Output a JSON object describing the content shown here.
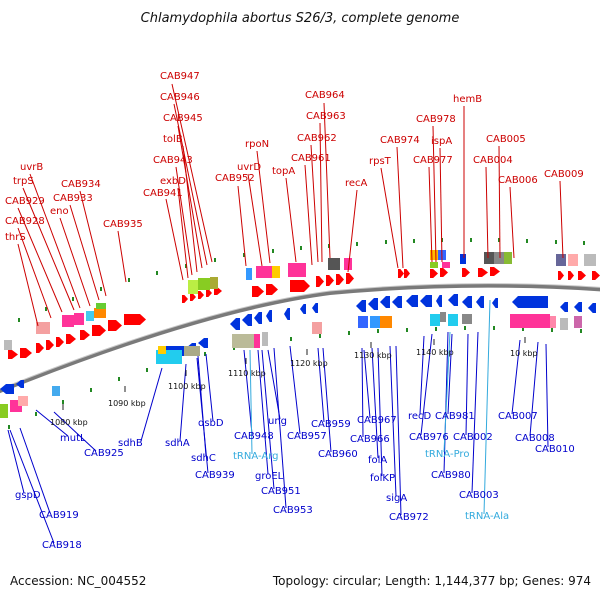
{
  "title": "Chlamydophila abortus S26/3, complete genome",
  "footer": {
    "accession": "Accession: NC_004552",
    "summary": "Topology: circular; Length: 1,144,377 bp; Genes: 974"
  },
  "colors": {
    "forward_label": "#cc0000",
    "reverse_label": "#0000cc",
    "rna_label": "#33aadd",
    "forward_gene": "#ff0000",
    "reverse_gene": "#0033dd",
    "backbone": "#808080",
    "tick": "#228822"
  },
  "ticks": [
    {
      "label": "1080 kbp"
    },
    {
      "label": "1090 kbp"
    },
    {
      "label": "1100 kbp"
    },
    {
      "label": "1110 kbp"
    },
    {
      "label": "1120 kbp"
    },
    {
      "label": "1130 kbp"
    },
    {
      "label": "1140 kbp"
    },
    {
      "label": "10 kbp"
    }
  ],
  "forward_labels": [
    {
      "text": "CAB947"
    },
    {
      "text": "CAB946"
    },
    {
      "text": "CAB945"
    },
    {
      "text": "tolB"
    },
    {
      "text": "CAB943"
    },
    {
      "text": "exbD"
    },
    {
      "text": "CAB941"
    },
    {
      "text": "rpoN"
    },
    {
      "text": "uvrD"
    },
    {
      "text": "CAB952"
    },
    {
      "text": "topA"
    },
    {
      "text": "CAB964"
    },
    {
      "text": "CAB963"
    },
    {
      "text": "CAB962"
    },
    {
      "text": "CAB961"
    },
    {
      "text": "recA"
    },
    {
      "text": "rpsT"
    },
    {
      "text": "CAB974"
    },
    {
      "text": "CAB978"
    },
    {
      "text": "ispA"
    },
    {
      "text": "CAB977"
    },
    {
      "text": "hemB"
    },
    {
      "text": "CAB005"
    },
    {
      "text": "CAB004"
    },
    {
      "text": "CAB006"
    },
    {
      "text": "CAB009"
    },
    {
      "text": "uvrB"
    },
    {
      "text": "trpS"
    },
    {
      "text": "CAB934"
    },
    {
      "text": "CAB933"
    },
    {
      "text": "CAB929"
    },
    {
      "text": "eno"
    },
    {
      "text": "CAB928"
    },
    {
      "text": "CAB935"
    },
    {
      "text": "thrS"
    }
  ],
  "reverse_labels": [
    {
      "text": "sdhB"
    },
    {
      "text": "sdhA"
    },
    {
      "text": "dsbD"
    },
    {
      "text": "sdhC"
    },
    {
      "text": "CAB939"
    },
    {
      "text": "CAB948"
    },
    {
      "text": "ung"
    },
    {
      "text": "groEL"
    },
    {
      "text": "CAB951"
    },
    {
      "text": "CAB953"
    },
    {
      "text": "CAB957"
    },
    {
      "text": "CAB959"
    },
    {
      "text": "CAB960"
    },
    {
      "text": "CAB967"
    },
    {
      "text": "CAB966"
    },
    {
      "text": "folA"
    },
    {
      "text": "folKP"
    },
    {
      "text": "sigA"
    },
    {
      "text": "CAB972"
    },
    {
      "text": "recD"
    },
    {
      "text": "CAB976"
    },
    {
      "text": "CAB981"
    },
    {
      "text": "CAB980"
    },
    {
      "text": "CAB002"
    },
    {
      "text": "CAB003"
    },
    {
      "text": "CAB007"
    },
    {
      "text": "CAB008"
    },
    {
      "text": "CAB010"
    },
    {
      "text": "mutL"
    },
    {
      "text": "CAB925"
    },
    {
      "text": "gspD"
    },
    {
      "text": "CAB919"
    },
    {
      "text": "CAB918"
    }
  ],
  "rna_labels": [
    {
      "text": "tRNA-Arg"
    },
    {
      "text": "tRNA-Pro"
    },
    {
      "text": "tRNA-Ala"
    }
  ]
}
